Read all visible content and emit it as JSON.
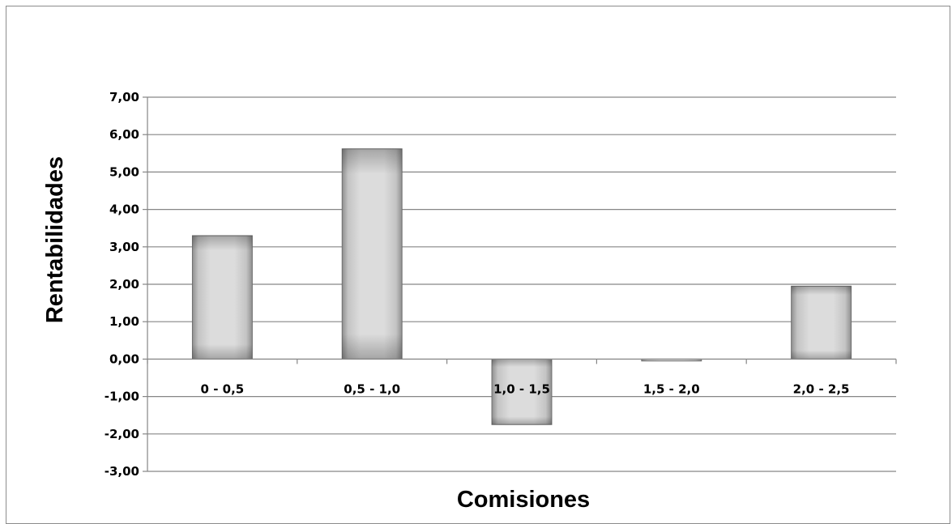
{
  "chart_data": {
    "type": "bar",
    "title": "",
    "xlabel": "Comisiones",
    "ylabel": "Rentabilidades",
    "categories": [
      "0 - 0,5",
      "0,5 - 1,0",
      "1,0 - 1,5",
      "1,5 - 2,0",
      "2,0 - 2,5"
    ],
    "values": [
      3.3,
      5.62,
      -1.75,
      -0.05,
      1.95
    ],
    "ylim": [
      -3,
      7
    ],
    "yticks": [
      7,
      6,
      5,
      4,
      3,
      2,
      1,
      0,
      -1,
      -2,
      -3
    ],
    "ytick_labels": [
      "7,00",
      "6,00",
      "5,00",
      "4,00",
      "3,00",
      "2,00",
      "1,00",
      "0,00",
      "-1,00",
      "-2,00",
      "-3,00"
    ],
    "grid": true,
    "legend": "none",
    "bar_color": "#d6d6d6",
    "bar_edge_color": "#6e6e6e",
    "grid_color": "#868686"
  }
}
